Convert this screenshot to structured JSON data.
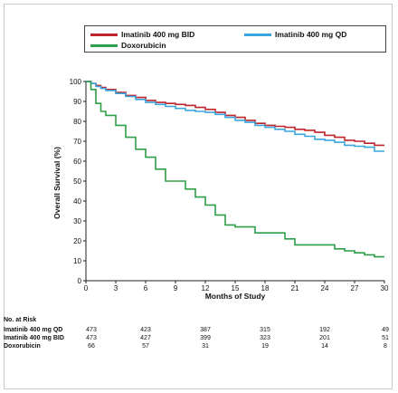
{
  "legend": {
    "items": [
      {
        "label": "Imatinib 400 mg BID",
        "color": "#c0242c"
      },
      {
        "label": "Imatinib 400 mg QD",
        "color": "#3aa6dd"
      },
      {
        "label": "Doxorubicin",
        "color": "#2e9e48"
      }
    ]
  },
  "chart_data": {
    "type": "line",
    "xlabel": "Months of Study",
    "ylabel": "Overall Survival (%)",
    "xlim": [
      0,
      30
    ],
    "ylim": [
      0,
      100
    ],
    "xticks": [
      0,
      3,
      6,
      9,
      12,
      15,
      18,
      21,
      24,
      27,
      30
    ],
    "yticks": [
      0,
      10,
      20,
      30,
      40,
      50,
      60,
      70,
      80,
      90,
      100
    ],
    "grid": false,
    "legend_position": "top",
    "series": [
      {
        "name": "Imatinib 400 mg BID",
        "color": "#c0242c",
        "x": [
          0,
          0.5,
          1,
          1.5,
          2,
          3,
          4,
          5,
          6,
          7,
          8,
          9,
          10,
          11,
          12,
          13,
          14,
          15,
          16,
          17,
          18,
          19,
          20,
          21,
          22,
          23,
          24,
          25,
          26,
          27,
          28,
          29,
          30
        ],
        "y": [
          100,
          99,
          98,
          97,
          96,
          94.5,
          93,
          92,
          90.5,
          89.5,
          89,
          88.5,
          88,
          87,
          86,
          84.5,
          83,
          82,
          80.5,
          79,
          78,
          77.5,
          77,
          76,
          75.5,
          74.5,
          73,
          72,
          70.5,
          70,
          69,
          68,
          68
        ]
      },
      {
        "name": "Imatinib 400 mg QD",
        "color": "#3aa6dd",
        "x": [
          0,
          0.5,
          1,
          1.5,
          2,
          3,
          4,
          5,
          6,
          7,
          8,
          9,
          10,
          11,
          12,
          13,
          14,
          15,
          16,
          17,
          18,
          19,
          20,
          21,
          22,
          23,
          24,
          25,
          26,
          27,
          28,
          29,
          30
        ],
        "y": [
          100,
          99,
          97.5,
          96.5,
          95.5,
          94,
          92.5,
          91,
          89.5,
          88.5,
          87.5,
          86.5,
          85.5,
          85,
          84.5,
          83.5,
          82,
          80.5,
          79.5,
          78,
          77,
          76,
          75,
          73.5,
          72.5,
          71,
          70.5,
          69.5,
          68,
          67.5,
          67,
          65,
          65
        ]
      },
      {
        "name": "Doxorubicin",
        "color": "#2e9e48",
        "x": [
          0,
          0.5,
          1,
          1.5,
          2,
          3,
          4,
          5,
          6,
          7,
          8,
          9,
          10,
          11,
          12,
          13,
          14,
          15,
          16,
          17,
          18,
          19,
          20,
          21,
          22,
          23,
          24,
          25,
          26,
          27,
          28,
          29,
          30
        ],
        "y": [
          100,
          96,
          89,
          85,
          83,
          78,
          72,
          66,
          62,
          56,
          50,
          50,
          46,
          42,
          38,
          33,
          28,
          27,
          27,
          24,
          24,
          24,
          21,
          18,
          18,
          18,
          18,
          16,
          15,
          14,
          13,
          12,
          12
        ]
      }
    ]
  },
  "risk_table": {
    "title": "No. at Risk",
    "time_points": [
      0,
      6,
      12,
      18,
      24,
      30
    ],
    "rows": [
      {
        "label": "Imatinib 400 mg QD",
        "values": [
          "473",
          "423",
          "387",
          "315",
          "192",
          "49"
        ]
      },
      {
        "label": "Imatinib 400 mg BID",
        "values": [
          "473",
          "427",
          "399",
          "323",
          "201",
          "51"
        ]
      },
      {
        "label": "Doxorubicin",
        "values": [
          "66",
          "57",
          "31",
          "19",
          "14",
          "8"
        ]
      }
    ]
  }
}
